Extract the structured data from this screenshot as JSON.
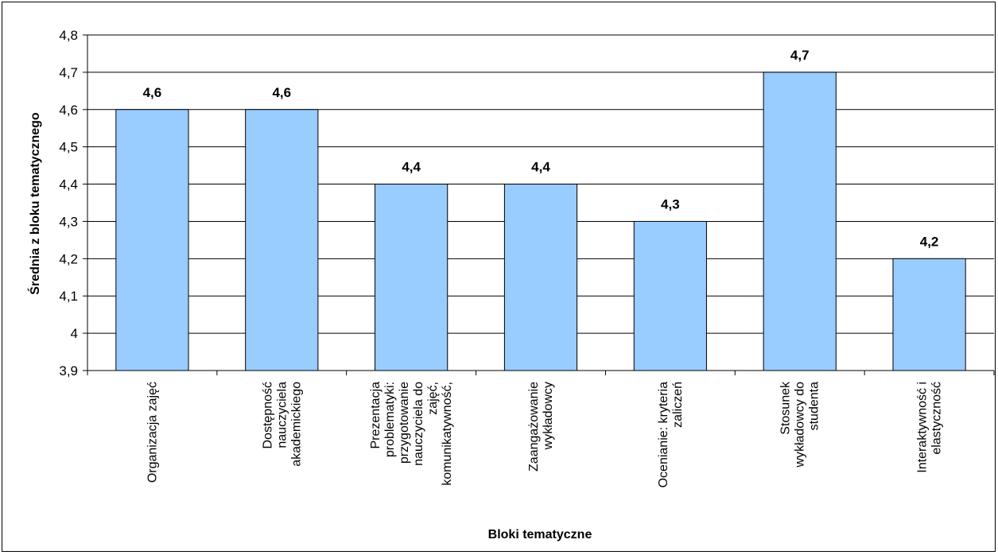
{
  "chart_data": {
    "type": "bar",
    "title": "",
    "xlabel": "Bloki tematyczne",
    "ylabel": "Średnia z bloku tematycznego",
    "ylim": [
      3.9,
      4.8
    ],
    "yticks": [
      "3,9",
      "4",
      "4,1",
      "4,2",
      "4,3",
      "4,4",
      "4,5",
      "4,6",
      "4,7",
      "4,8"
    ],
    "grid": true,
    "bar_color": "#99ccff",
    "categories": [
      [
        "Organizacja zajęć"
      ],
      [
        "Dostępność",
        "nauczyciela",
        "akademickiego"
      ],
      [
        "Prezentacja",
        "problematyki:",
        "przygotowanie",
        "nauczyciela do",
        "zajęć,",
        "komunikatywność,"
      ],
      [
        "Zaangażowanie",
        "wykładowcy"
      ],
      [
        "Ocenianie: kryteria",
        "zaliczeń"
      ],
      [
        "Stosunek",
        "wykładowcy do",
        "studenta"
      ],
      [
        "Interaktywność i",
        "elastyczność"
      ]
    ],
    "values": [
      4.6,
      4.6,
      4.4,
      4.4,
      4.3,
      4.7,
      4.2
    ],
    "data_labels": [
      "4,6",
      "4,6",
      "4,4",
      "4,4",
      "4,3",
      "4,7",
      "4,2"
    ]
  }
}
